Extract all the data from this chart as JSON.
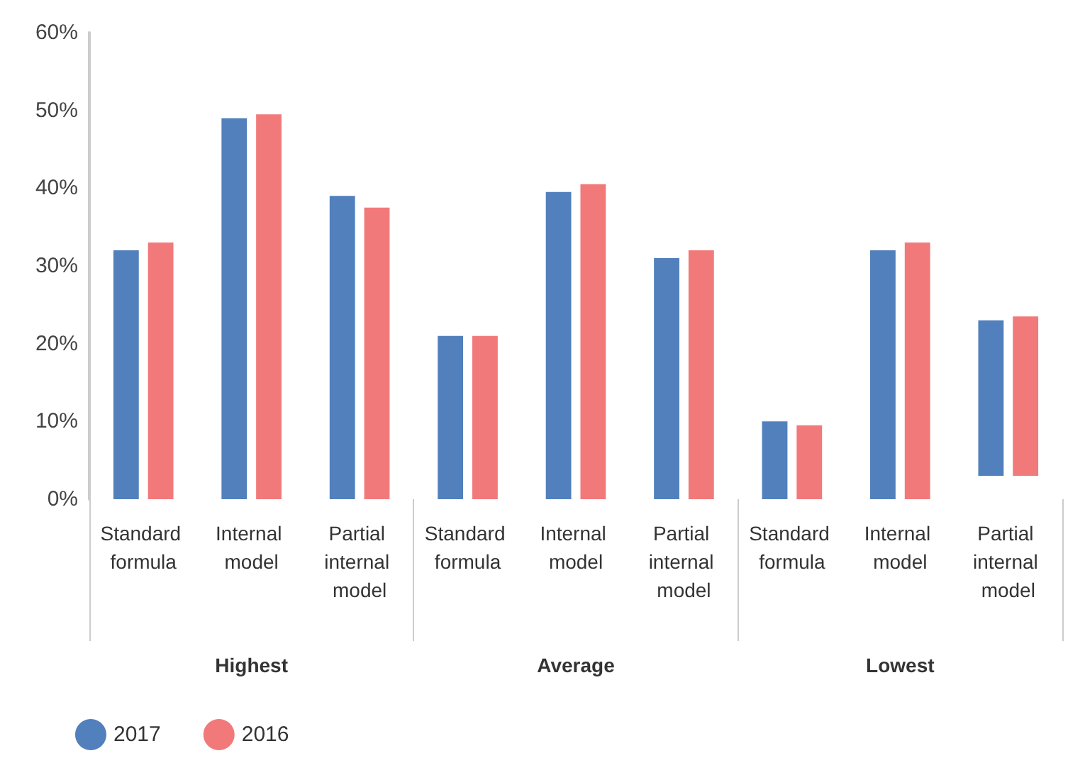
{
  "chart_data": {
    "type": "bar",
    "categories": [
      "Standard formula",
      "Internal model",
      "Partial internal model",
      "Standard formula",
      "Internal model",
      "Partial internal model",
      "Standard formula",
      "Internal model",
      "Partial internal model"
    ],
    "annotations": [
      "Highest",
      "Average",
      "Lowest"
    ],
    "series": [
      {
        "name": "2017",
        "color": "#5180bc",
        "values": [
          32,
          49,
          39,
          21,
          39.5,
          31,
          10,
          32,
          20
        ],
        "base": [
          0,
          0,
          0,
          0,
          0,
          0,
          0,
          0,
          3
        ]
      },
      {
        "name": "2016",
        "color": "#f2797a",
        "values": [
          33,
          49.5,
          37.5,
          21,
          40.5,
          32,
          9.5,
          33,
          20.5
        ],
        "base": [
          0,
          0,
          0,
          0,
          0,
          0,
          0,
          0,
          3
        ]
      }
    ],
    "ylim": [
      0,
      60
    ],
    "yticks": [
      {
        "value": 0,
        "label": "0%"
      },
      {
        "value": 10,
        "label": "10%"
      },
      {
        "value": 20,
        "label": "20%"
      },
      {
        "value": 30,
        "label": "30%"
      },
      {
        "value": 40,
        "label": "40%"
      },
      {
        "value": 50,
        "label": "50%"
      },
      {
        "value": 60,
        "label": "60%"
      }
    ],
    "grid": false,
    "legend": "bottom left"
  }
}
